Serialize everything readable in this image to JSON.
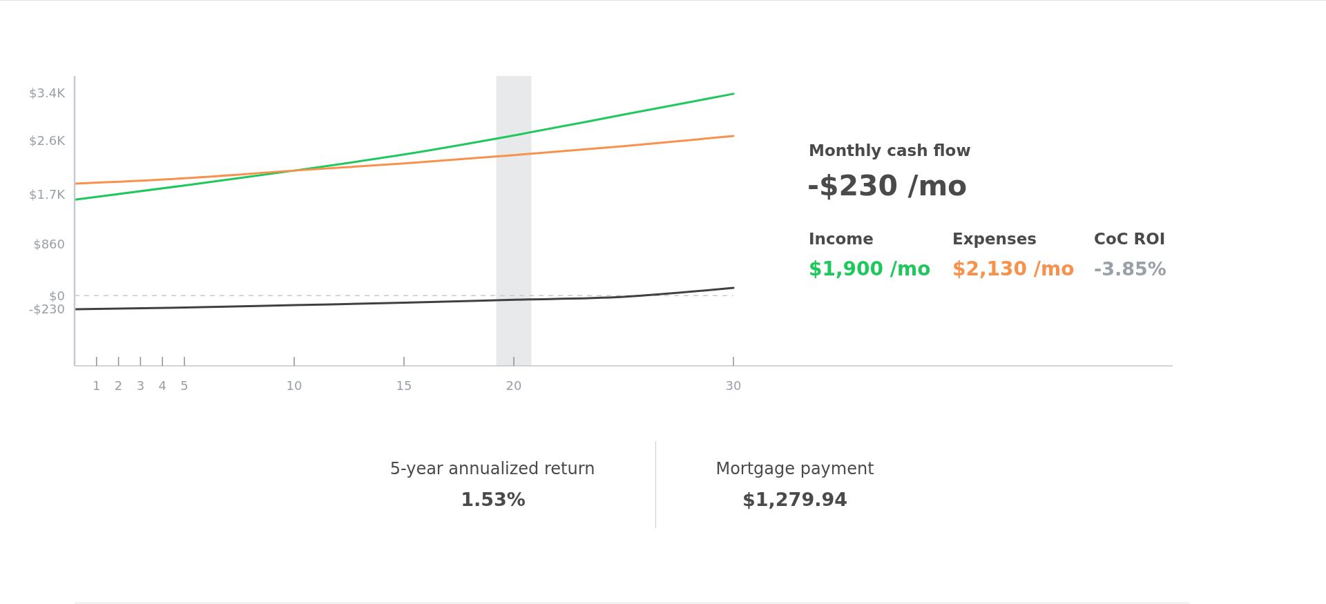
{
  "chart_data": {
    "type": "line",
    "x": [
      0,
      5,
      10,
      15,
      20,
      25,
      30
    ],
    "series": [
      {
        "color": "#1ec85c",
        "values": [
          1610,
          1850,
          2100,
          2370,
          2690,
          3040,
          3390
        ]
      },
      {
        "color": "#f8914c",
        "values": [
          1880,
          1970,
          2100,
          2220,
          2360,
          2510,
          2680
        ]
      },
      {
        "color": "#404040",
        "values": [
          -230,
          -200,
          -160,
          -120,
          -70,
          -20,
          130
        ]
      }
    ],
    "xlim": [
      0,
      50
    ],
    "xticks": [
      1,
      2,
      3,
      4,
      5,
      10,
      15,
      20,
      30
    ],
    "ylim": [
      -1180,
      3690
    ],
    "yticks": [
      {
        "value": -230,
        "label": "-$230"
      },
      {
        "value": 0,
        "label": "$0"
      },
      {
        "value": 860,
        "label": "$860"
      },
      {
        "value": 1700,
        "label": "$1.7K"
      },
      {
        "value": 2600,
        "label": "$2.6K"
      },
      {
        "value": 3400,
        "label": "$3.4K"
      }
    ],
    "ref_lines": [
      {
        "axis": "y",
        "value": 0,
        "color": "#c8c9cc",
        "line_style": "dashed"
      }
    ],
    "bands": [
      {
        "axis": "x",
        "from": 19.2,
        "to": 20.8,
        "color": "#e8e9eb"
      }
    ],
    "marker": "none",
    "annotations": [
      "Monthly cash flow",
      "-$230 /mo",
      "Income",
      "$1,900 /mo",
      "Expenses",
      "$2,130 /mo",
      "CoC ROI",
      "-3.85%",
      "5-year annualized return",
      "1.53%",
      "Mortgage payment",
      "$1,279.94"
    ]
  }
}
